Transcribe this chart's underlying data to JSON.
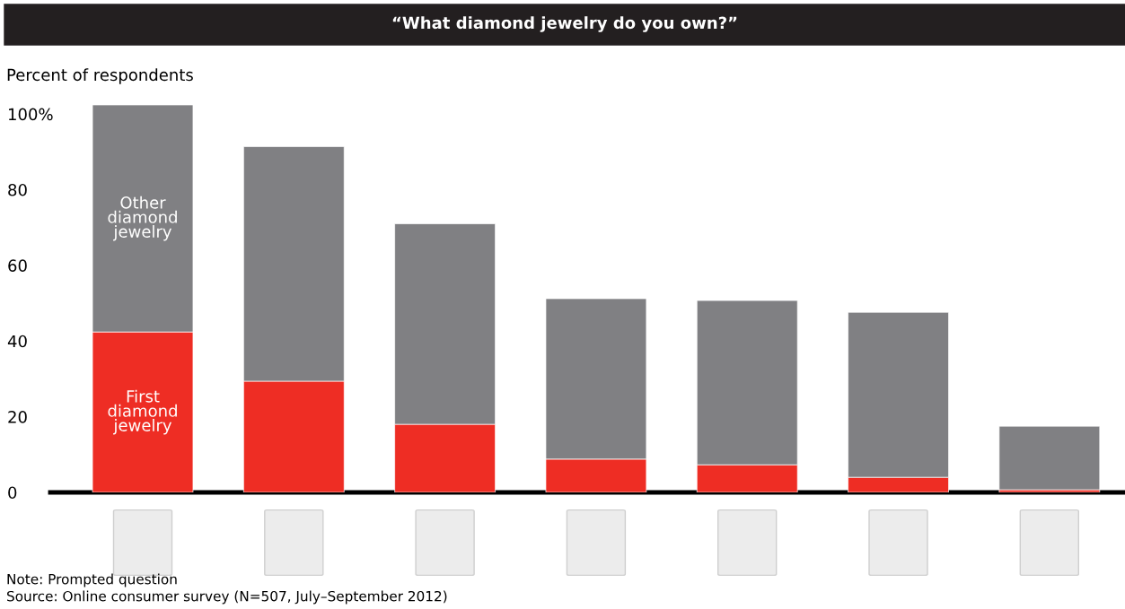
{
  "chart_data": {
    "type": "bar",
    "stacked": true,
    "title": "“What diamond jewelry do you own?”",
    "ylabel": "Percent of respondents",
    "categories": [
      null,
      null,
      null,
      null,
      null,
      null,
      null
    ],
    "series": [
      {
        "name": "First diamond jewelry",
        "color": "#ee2d24",
        "values": [
          42.4,
          29.4,
          18,
          8.8,
          7.3,
          4,
          0.7
        ]
      },
      {
        "name": "Other diamond jewelry",
        "color": "#808083",
        "values": [
          60,
          62,
          53,
          42.4,
          43.4,
          43.6,
          16.8
        ]
      }
    ],
    "ylim": [
      0,
      102.4
    ],
    "yticks": [
      {
        "value": 100,
        "label": "100%"
      },
      80,
      60,
      40,
      20,
      0
    ],
    "grid": false,
    "legend": false,
    "annotations": [
      "Note: Prompted question",
      "Source: Online consumer survey (N=507, July–September 2012)"
    ]
  }
}
